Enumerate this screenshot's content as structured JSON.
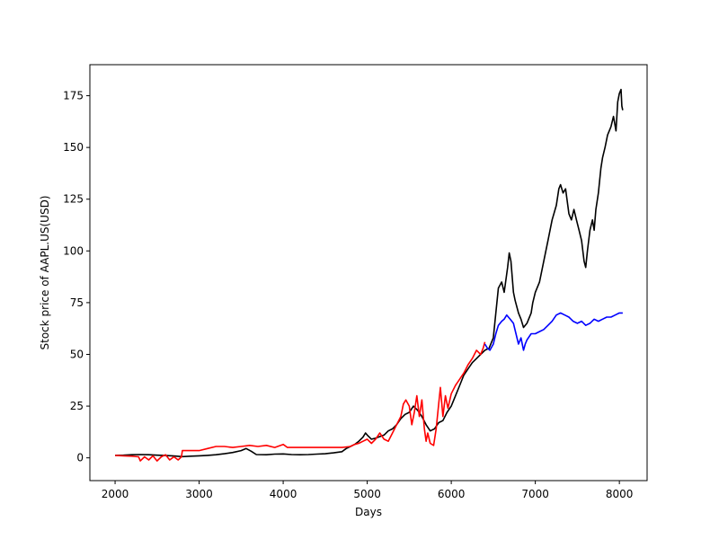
{
  "chart_data": {
    "type": "line",
    "xlabel": "Days",
    "ylabel": "Stock price of AAPL.US(USD)",
    "xlim": [
      1700,
      8330
    ],
    "ylim": [
      -11,
      190
    ],
    "xticks": [
      2000,
      3000,
      4000,
      5000,
      6000,
      7000,
      8000
    ],
    "yticks": [
      0,
      25,
      50,
      75,
      100,
      125,
      150,
      175
    ],
    "grid": false,
    "series": [
      {
        "color": "#000000",
        "points": [
          [
            2000,
            1.2
          ],
          [
            2100,
            1.3
          ],
          [
            2200,
            1.5
          ],
          [
            2300,
            1.6
          ],
          [
            2400,
            1.5
          ],
          [
            2500,
            1.3
          ],
          [
            2600,
            1.1
          ],
          [
            2700,
            0.9
          ],
          [
            2800,
            0.6
          ],
          [
            2900,
            0.8
          ],
          [
            3000,
            1.0
          ],
          [
            3100,
            1.2
          ],
          [
            3200,
            1.5
          ],
          [
            3300,
            2.0
          ],
          [
            3400,
            2.6
          ],
          [
            3500,
            3.5
          ],
          [
            3560,
            4.5
          ],
          [
            3620,
            3.2
          ],
          [
            3680,
            1.6
          ],
          [
            3800,
            1.5
          ],
          [
            3900,
            1.8
          ],
          [
            4000,
            1.9
          ],
          [
            4100,
            1.6
          ],
          [
            4200,
            1.5
          ],
          [
            4300,
            1.6
          ],
          [
            4400,
            1.8
          ],
          [
            4500,
            2.0
          ],
          [
            4600,
            2.4
          ],
          [
            4700,
            3.0
          ],
          [
            4750,
            4.5
          ],
          [
            4800,
            5.5
          ],
          [
            4850,
            6.5
          ],
          [
            4900,
            8
          ],
          [
            4950,
            10
          ],
          [
            4980,
            12
          ],
          [
            5000,
            11
          ],
          [
            5050,
            9
          ],
          [
            5100,
            9.5
          ],
          [
            5200,
            11
          ],
          [
            5250,
            13
          ],
          [
            5300,
            14
          ],
          [
            5350,
            16
          ],
          [
            5400,
            19
          ],
          [
            5450,
            21
          ],
          [
            5500,
            22
          ],
          [
            5550,
            25
          ],
          [
            5600,
            23
          ],
          [
            5650,
            20
          ],
          [
            5700,
            16
          ],
          [
            5750,
            13
          ],
          [
            5800,
            14
          ],
          [
            5850,
            17
          ],
          [
            5900,
            18
          ],
          [
            5950,
            22
          ],
          [
            6000,
            25
          ],
          [
            6050,
            30
          ],
          [
            6100,
            35
          ],
          [
            6150,
            40
          ],
          [
            6200,
            43
          ],
          [
            6250,
            46
          ],
          [
            6300,
            48
          ],
          [
            6350,
            50
          ],
          [
            6400,
            52
          ],
          [
            6450,
            53
          ],
          [
            6500,
            58
          ],
          [
            6530,
            70
          ],
          [
            6560,
            82
          ],
          [
            6600,
            85
          ],
          [
            6630,
            80
          ],
          [
            6670,
            92
          ],
          [
            6690,
            99
          ],
          [
            6710,
            95
          ],
          [
            6740,
            80
          ],
          [
            6760,
            76
          ],
          [
            6800,
            70
          ],
          [
            6830,
            67
          ],
          [
            6860,
            63
          ],
          [
            6900,
            65
          ],
          [
            6950,
            70
          ],
          [
            6970,
            75
          ],
          [
            7000,
            80
          ],
          [
            7050,
            85
          ],
          [
            7100,
            95
          ],
          [
            7150,
            105
          ],
          [
            7200,
            115
          ],
          [
            7250,
            122
          ],
          [
            7280,
            130
          ],
          [
            7300,
            132
          ],
          [
            7330,
            128
          ],
          [
            7360,
            130
          ],
          [
            7400,
            118
          ],
          [
            7430,
            115
          ],
          [
            7460,
            120
          ],
          [
            7490,
            115
          ],
          [
            7520,
            110
          ],
          [
            7550,
            105
          ],
          [
            7580,
            95
          ],
          [
            7600,
            92
          ],
          [
            7620,
            100
          ],
          [
            7650,
            110
          ],
          [
            7680,
            115
          ],
          [
            7700,
            110
          ],
          [
            7720,
            120
          ],
          [
            7750,
            128
          ],
          [
            7780,
            140
          ],
          [
            7800,
            145
          ],
          [
            7830,
            150
          ],
          [
            7860,
            156
          ],
          [
            7900,
            160
          ],
          [
            7930,
            165
          ],
          [
            7960,
            158
          ],
          [
            7980,
            172
          ],
          [
            8000,
            176
          ],
          [
            8020,
            178
          ],
          [
            8030,
            170
          ],
          [
            8040,
            168
          ]
        ]
      },
      {
        "color": "#ff0000",
        "points": [
          [
            2000,
            1.2
          ],
          [
            2100,
            1.0
          ],
          [
            2200,
            0.8
          ],
          [
            2280,
            0.5
          ],
          [
            2300,
            -1.5
          ],
          [
            2350,
            0.5
          ],
          [
            2400,
            -1.0
          ],
          [
            2450,
            1.0
          ],
          [
            2500,
            -1.5
          ],
          [
            2550,
            0.5
          ],
          [
            2600,
            1.5
          ],
          [
            2650,
            -1.0
          ],
          [
            2700,
            0.5
          ],
          [
            2750,
            -1.0
          ],
          [
            2790,
            0.5
          ],
          [
            2800,
            3.5
          ],
          [
            2900,
            3.5
          ],
          [
            3000,
            3.5
          ],
          [
            3100,
            4.5
          ],
          [
            3200,
            5.5
          ],
          [
            3300,
            5.5
          ],
          [
            3400,
            5.0
          ],
          [
            3500,
            5.5
          ],
          [
            3600,
            6.0
          ],
          [
            3700,
            5.5
          ],
          [
            3800,
            6.0
          ],
          [
            3900,
            5.0
          ],
          [
            4000,
            6.5
          ],
          [
            4050,
            5.0
          ],
          [
            4100,
            5.0
          ],
          [
            4200,
            5.0
          ],
          [
            4300,
            5.0
          ],
          [
            4400,
            5.0
          ],
          [
            4500,
            5.0
          ],
          [
            4600,
            5.0
          ],
          [
            4700,
            5.0
          ],
          [
            4800,
            5.5
          ],
          [
            4850,
            6.5
          ],
          [
            4900,
            7.0
          ],
          [
            4950,
            8.0
          ],
          [
            5000,
            9
          ],
          [
            5050,
            7
          ],
          [
            5100,
            9
          ],
          [
            5150,
            12
          ],
          [
            5200,
            9
          ],
          [
            5250,
            8
          ],
          [
            5300,
            12
          ],
          [
            5350,
            16
          ],
          [
            5400,
            20
          ],
          [
            5430,
            26
          ],
          [
            5460,
            28
          ],
          [
            5500,
            25
          ],
          [
            5530,
            16
          ],
          [
            5560,
            22
          ],
          [
            5590,
            30
          ],
          [
            5620,
            20
          ],
          [
            5650,
            28
          ],
          [
            5680,
            14
          ],
          [
            5700,
            8
          ],
          [
            5720,
            12
          ],
          [
            5750,
            7
          ],
          [
            5790,
            6
          ],
          [
            5820,
            14
          ],
          [
            5850,
            26
          ],
          [
            5870,
            34
          ],
          [
            5900,
            20
          ],
          [
            5930,
            30
          ],
          [
            5960,
            24
          ],
          [
            6000,
            31
          ],
          [
            6050,
            35
          ],
          [
            6100,
            38
          ],
          [
            6150,
            41
          ],
          [
            6200,
            45
          ],
          [
            6250,
            48
          ],
          [
            6300,
            52
          ],
          [
            6350,
            50
          ],
          [
            6380,
            53
          ],
          [
            6400,
            56
          ]
        ]
      },
      {
        "color": "#0000ff",
        "points": [
          [
            6400,
            55
          ],
          [
            6430,
            53
          ],
          [
            6460,
            52
          ],
          [
            6500,
            55
          ],
          [
            6530,
            60
          ],
          [
            6560,
            64
          ],
          [
            6600,
            66
          ],
          [
            6630,
            67
          ],
          [
            6660,
            69
          ],
          [
            6700,
            67
          ],
          [
            6740,
            65
          ],
          [
            6770,
            60
          ],
          [
            6800,
            55
          ],
          [
            6830,
            58
          ],
          [
            6860,
            52
          ],
          [
            6880,
            55
          ],
          [
            6900,
            57
          ],
          [
            6950,
            60
          ],
          [
            7000,
            60
          ],
          [
            7050,
            61
          ],
          [
            7100,
            62
          ],
          [
            7150,
            64
          ],
          [
            7200,
            66
          ],
          [
            7250,
            69
          ],
          [
            7300,
            70
          ],
          [
            7350,
            69
          ],
          [
            7400,
            68
          ],
          [
            7450,
            66
          ],
          [
            7500,
            65
          ],
          [
            7550,
            66
          ],
          [
            7600,
            64
          ],
          [
            7650,
            65
          ],
          [
            7700,
            67
          ],
          [
            7750,
            66
          ],
          [
            7800,
            67
          ],
          [
            7850,
            68
          ],
          [
            7900,
            68
          ],
          [
            7950,
            69
          ],
          [
            8000,
            70
          ],
          [
            8040,
            70
          ]
        ]
      }
    ]
  }
}
